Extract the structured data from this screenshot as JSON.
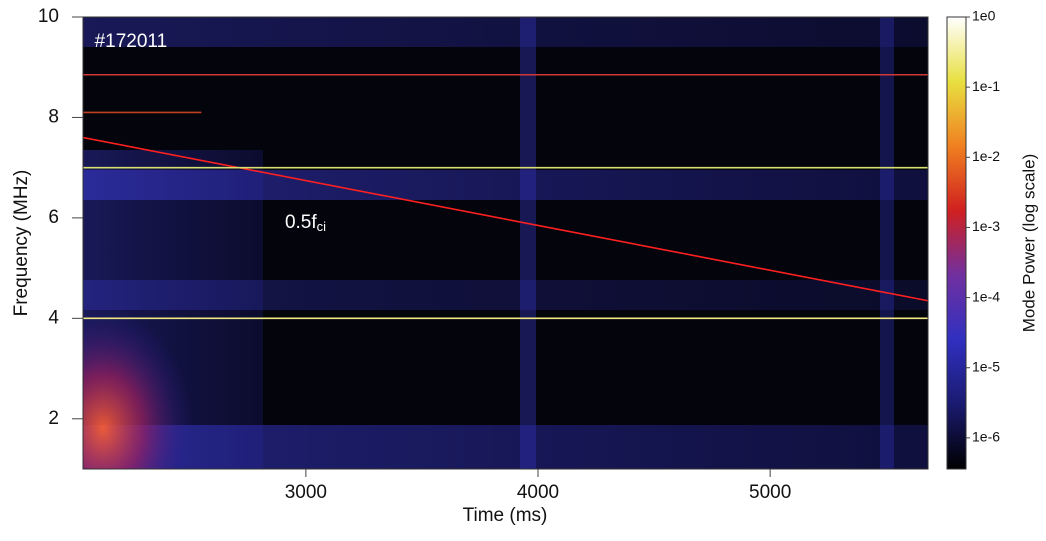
{
  "chart_data": {
    "type": "spectrogram",
    "xlabel": "Time (ms)",
    "ylabel": "Frequency (MHz)",
    "xlim": [
      2040,
      5680
    ],
    "xticks": [
      3000,
      4000,
      5000
    ],
    "ylim": [
      1,
      10
    ],
    "yticks": [
      2,
      4,
      6,
      8,
      10
    ],
    "annotations": [
      {
        "text": "#172011",
        "x": 2090,
        "y": 9.5
      },
      {
        "text": "0.5f",
        "subscript": "ci",
        "x": 2910,
        "y": 5.9
      }
    ],
    "lines": [
      {
        "color": "#ff2020",
        "x": [
          2040,
          5680
        ],
        "y": [
          7.6,
          4.35
        ]
      },
      {
        "color": "#d8e070",
        "x": [
          2040,
          5680
        ],
        "y": [
          7.0,
          7.0
        ]
      },
      {
        "color": "#f0e880",
        "x": [
          2040,
          5680
        ],
        "y": [
          4.0,
          4.0
        ]
      },
      {
        "color": "#d03838",
        "x": [
          2040,
          5680
        ],
        "y": [
          8.85,
          8.85
        ]
      },
      {
        "color": "#c04020",
        "x": [
          2040,
          2550
        ],
        "y": [
          8.1,
          8.1
        ]
      }
    ],
    "colorbar": {
      "label": "Mode Power (log scale)",
      "log_scale": true,
      "lim": [
        3.6e-07,
        1
      ],
      "ticks": [
        {
          "value": 1,
          "label": "1e0"
        },
        {
          "value": 0.1,
          "label": "1e-1"
        },
        {
          "value": 0.01,
          "label": "1e-2"
        },
        {
          "value": 0.001,
          "label": "1e-3"
        },
        {
          "value": 0.0001,
          "label": "1e-4"
        },
        {
          "value": 1e-05,
          "label": "1e-5"
        },
        {
          "value": 1e-06,
          "label": "1e-6"
        }
      ],
      "colormap": [
        "#000000",
        "#1a1a70",
        "#3030c0",
        "#7030a0",
        "#d02020",
        "#f08020",
        "#e8e040",
        "#ffffff"
      ]
    }
  }
}
